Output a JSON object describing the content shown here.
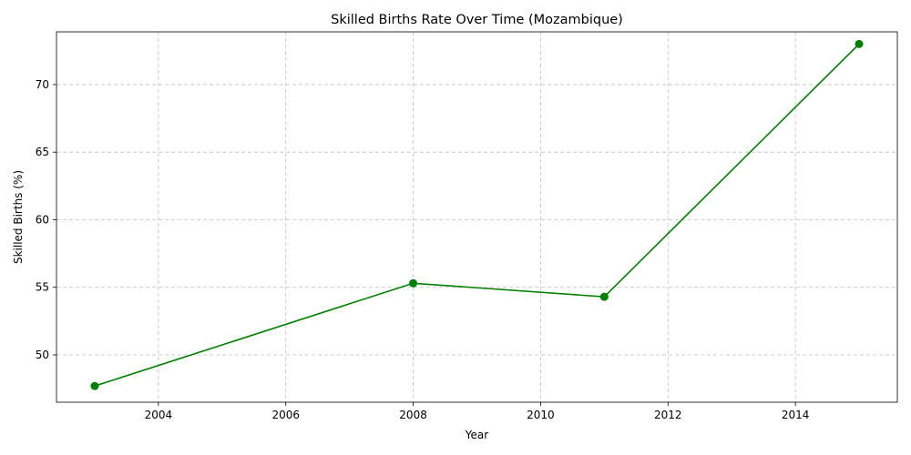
{
  "chart_data": {
    "type": "line",
    "title": "Skilled Births Rate Over Time (Mozambique)",
    "xlabel": "Year",
    "ylabel": "Skilled Births (%)",
    "xlim": [
      2002.4,
      2015.6
    ],
    "ylim": [
      46.5,
      73.9
    ],
    "x_ticks": [
      2004,
      2006,
      2008,
      2010,
      2012,
      2014
    ],
    "y_ticks": [
      50,
      55,
      60,
      65,
      70
    ],
    "x_tick_labels": [
      "2004",
      "2006",
      "2008",
      "2010",
      "2012",
      "2014"
    ],
    "y_tick_labels": [
      "50",
      "55",
      "60",
      "65",
      "70"
    ],
    "grid": true,
    "series": [
      {
        "color": "#008000",
        "marker": "circle",
        "x": [
          2003,
          2008,
          2011,
          2015
        ],
        "y": [
          47.7,
          55.3,
          54.3,
          73.0
        ]
      }
    ]
  }
}
